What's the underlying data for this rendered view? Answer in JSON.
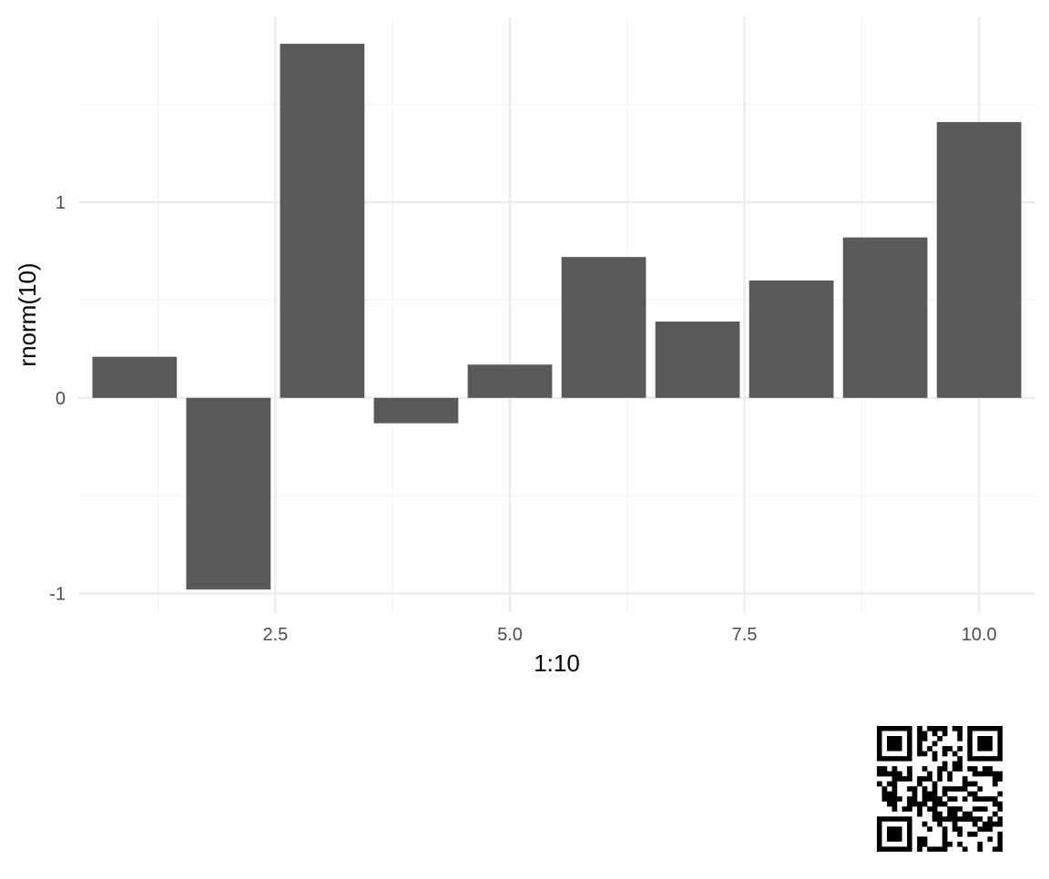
{
  "chart_data": {
    "type": "bar",
    "x": [
      1,
      2,
      3,
      4,
      5,
      6,
      7,
      8,
      9,
      10
    ],
    "values": [
      0.21,
      -0.98,
      1.81,
      -0.13,
      0.17,
      0.72,
      0.39,
      0.6,
      0.82,
      1.41
    ],
    "xlabel": "1:10",
    "ylabel": "rnorm(10)",
    "xlim": [
      0.4,
      10.6
    ],
    "ylim": [
      -1.1,
      1.95
    ],
    "x_ticks": [
      2.5,
      5.0,
      7.5,
      10.0
    ],
    "x_tick_labels": [
      "2.5",
      "5.0",
      "7.5",
      "10.0"
    ],
    "y_ticks": [
      -1,
      0,
      1
    ],
    "y_tick_labels": [
      "-1",
      "0",
      "1"
    ],
    "grid": true,
    "legend": "none",
    "colors": {
      "bar": "#595959",
      "grid_major": "#ebebeb",
      "grid_minor": "#f3f3f3",
      "tick_text": "#4d4d4d",
      "axis_title": "#000000"
    }
  },
  "qr_code": {
    "icon": "qr-code-icon"
  }
}
